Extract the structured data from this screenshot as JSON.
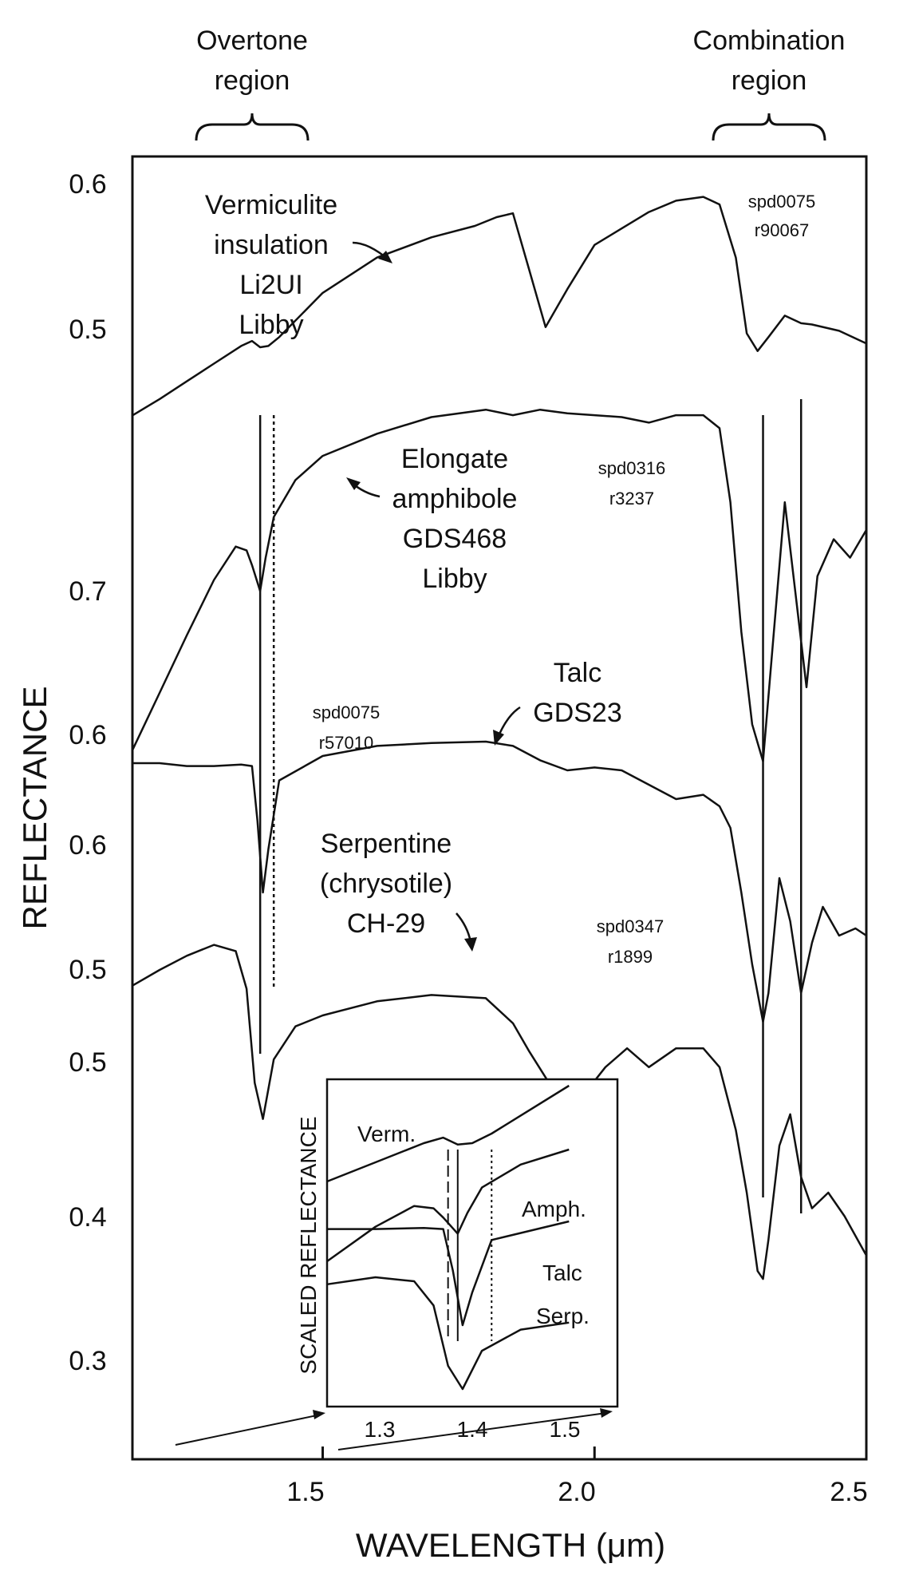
{
  "chart_data": {
    "type": "line",
    "xlabel": "WAVELENGTH (μm)",
    "ylabel": "REFLECTANCE",
    "xlim": [
      1.15,
      2.5
    ],
    "xticks": [
      "1.5",
      "2.0",
      "2.5"
    ],
    "region_labels": [
      {
        "name": "Overtone region",
        "lines": [
          "Overtone",
          "region"
        ],
        "range": [
          1.29,
          1.5
        ]
      },
      {
        "name": "Combination region",
        "lines": [
          "Combination",
          "region"
        ],
        "range": [
          2.25,
          2.45
        ]
      }
    ],
    "panels": [
      {
        "name": "Vermiculite insulation Li2UI Libby",
        "label_lines": [
          "Vermiculite",
          "insulation",
          "Li2UI",
          "Libby"
        ],
        "id_lines": [
          "spd0075",
          "r90067"
        ],
        "yticks": [
          "0.6",
          "0.5"
        ],
        "ylim": [
          0.4,
          0.63
        ],
        "x": [
          1.15,
          1.2,
          1.25,
          1.3,
          1.35,
          1.37,
          1.385,
          1.4,
          1.42,
          1.5,
          1.6,
          1.7,
          1.78,
          1.82,
          1.85,
          1.88,
          1.91,
          1.95,
          2.0,
          2.05,
          2.1,
          2.15,
          2.2,
          2.23,
          2.26,
          2.28,
          2.3,
          2.32,
          2.35,
          2.38,
          2.4,
          2.45,
          2.5
        ],
        "y": [
          0.425,
          0.438,
          0.452,
          0.466,
          0.48,
          0.484,
          0.479,
          0.48,
          0.487,
          0.522,
          0.55,
          0.566,
          0.575,
          0.582,
          0.585,
          0.54,
          0.495,
          0.525,
          0.56,
          0.573,
          0.586,
          0.595,
          0.598,
          0.592,
          0.55,
          0.49,
          0.476,
          0.487,
          0.504,
          0.498,
          0.497,
          0.492,
          0.482
        ]
      },
      {
        "name": "Elongate amphibole GDS468 Libby",
        "label_lines": [
          "Elongate",
          "amphibole",
          "GDS468",
          "Libby"
        ],
        "id_lines": [
          "spd0316",
          "r3237"
        ],
        "yticks": [
          "0.7",
          "0.6"
        ],
        "ylim": [
          0.58,
          0.8
        ],
        "x": [
          1.15,
          1.2,
          1.25,
          1.3,
          1.34,
          1.36,
          1.37,
          1.385,
          1.395,
          1.41,
          1.45,
          1.5,
          1.6,
          1.7,
          1.8,
          1.85,
          1.9,
          1.95,
          2.0,
          2.05,
          2.1,
          2.15,
          2.2,
          2.23,
          2.25,
          2.27,
          2.29,
          2.31,
          2.33,
          2.35,
          2.37,
          2.39,
          2.41,
          2.44,
          2.47,
          2.5
        ],
        "y": [
          0.606,
          0.637,
          0.668,
          0.698,
          0.716,
          0.714,
          0.706,
          0.692,
          0.71,
          0.732,
          0.752,
          0.765,
          0.777,
          0.786,
          0.79,
          0.787,
          0.79,
          0.788,
          0.787,
          0.786,
          0.783,
          0.787,
          0.787,
          0.78,
          0.74,
          0.67,
          0.62,
          0.6,
          0.67,
          0.74,
          0.69,
          0.64,
          0.7,
          0.72,
          0.71,
          0.725
        ]
      },
      {
        "name": "Talc GDS23",
        "label_lines": [
          "Talc",
          "GDS23"
        ],
        "id_lines": [
          "spd0075",
          "r57010"
        ],
        "yticks": [
          "0.6",
          "0.5"
        ],
        "ylim": [
          0.48,
          0.68
        ],
        "x": [
          1.15,
          1.2,
          1.25,
          1.3,
          1.35,
          1.37,
          1.38,
          1.39,
          1.4,
          1.42,
          1.5,
          1.6,
          1.7,
          1.8,
          1.85,
          1.9,
          1.95,
          2.0,
          2.05,
          2.1,
          2.15,
          2.2,
          2.23,
          2.25,
          2.27,
          2.29,
          2.31,
          2.32,
          2.34,
          2.36,
          2.38,
          2.4,
          2.42,
          2.45,
          2.48,
          2.5
        ],
        "y": [
          0.66,
          0.66,
          0.658,
          0.658,
          0.659,
          0.658,
          0.62,
          0.57,
          0.6,
          0.648,
          0.665,
          0.672,
          0.674,
          0.675,
          0.672,
          0.662,
          0.655,
          0.657,
          0.655,
          0.645,
          0.635,
          0.638,
          0.63,
          0.615,
          0.57,
          0.52,
          0.48,
          0.5,
          0.58,
          0.55,
          0.5,
          0.535,
          0.56,
          0.54,
          0.545,
          0.54
        ]
      },
      {
        "name": "Serpentine (chrysotile) CH-29",
        "label_lines": [
          "Serpentine",
          "(chrysotile)",
          "CH-29"
        ],
        "id_lines": [
          "spd0347",
          "r1899"
        ],
        "yticks": [
          "0.5",
          "0.4",
          "0.3"
        ],
        "ylim": [
          0.22,
          0.56
        ],
        "x": [
          1.15,
          1.2,
          1.25,
          1.3,
          1.34,
          1.36,
          1.375,
          1.39,
          1.41,
          1.45,
          1.5,
          1.6,
          1.7,
          1.8,
          1.85,
          1.88,
          1.92,
          1.97,
          2.02,
          2.06,
          2.1,
          2.15,
          2.2,
          2.23,
          2.26,
          2.28,
          2.3,
          2.31,
          2.32,
          2.34,
          2.36,
          2.38,
          2.4,
          2.43,
          2.46,
          2.5
        ],
        "y": [
          0.522,
          0.532,
          0.541,
          0.548,
          0.544,
          0.52,
          0.46,
          0.437,
          0.475,
          0.496,
          0.503,
          0.512,
          0.516,
          0.514,
          0.498,
          0.48,
          0.458,
          0.448,
          0.47,
          0.482,
          0.47,
          0.482,
          0.482,
          0.47,
          0.43,
          0.39,
          0.34,
          0.335,
          0.36,
          0.42,
          0.44,
          0.4,
          0.38,
          0.39,
          0.375,
          0.35
        ]
      }
    ],
    "inset": {
      "ylabel": "SCALED REFLECTANCE",
      "xlim": [
        1.25,
        1.55
      ],
      "xticks": [
        "1.3",
        "1.4",
        "1.5"
      ],
      "series_labels": [
        "Verm.",
        "Amph.",
        "Talc",
        "Serp."
      ]
    }
  }
}
